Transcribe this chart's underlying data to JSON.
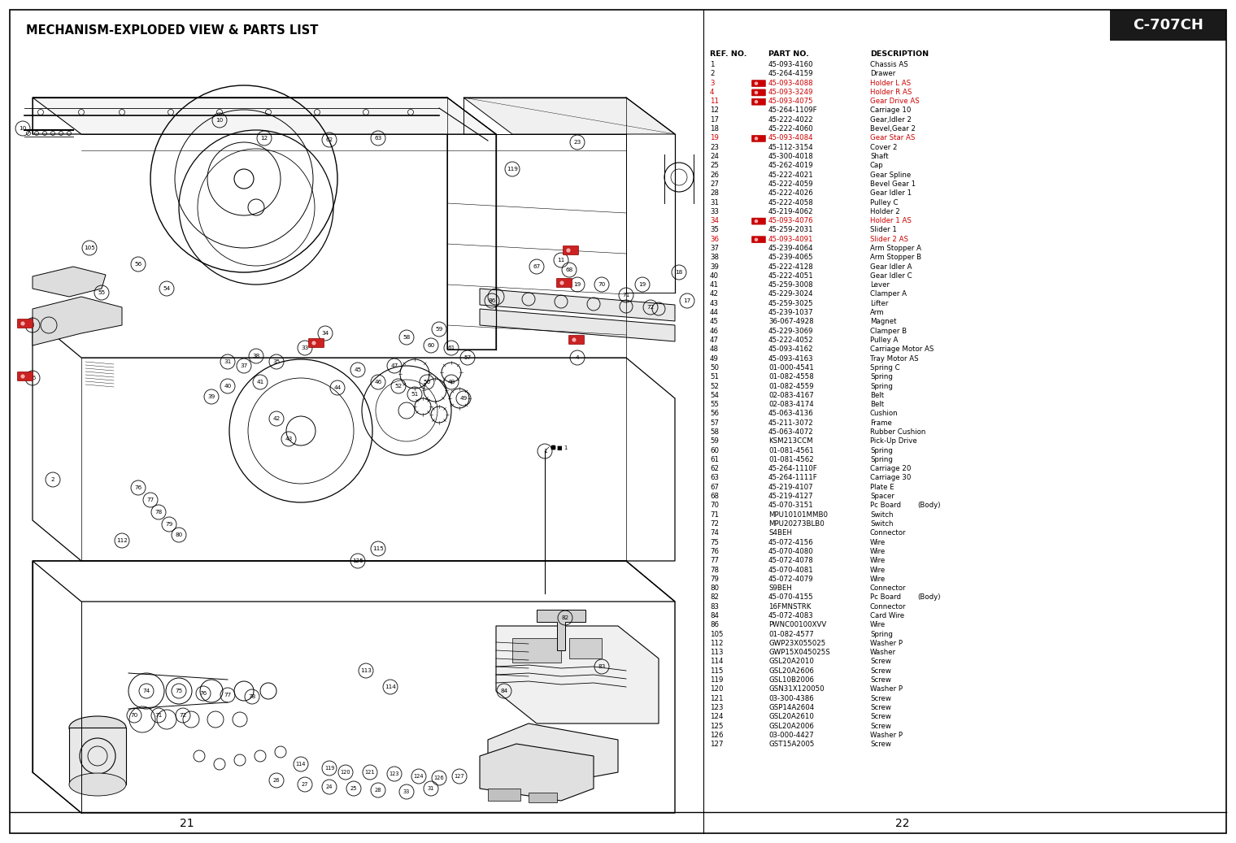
{
  "title": "MECHANISM-EXPLODED VIEW & PARTS LIST",
  "model": "C-707CH",
  "page_left": "21",
  "page_right": "22",
  "background_color": "#ffffff",
  "highlight_color": "#cc0000",
  "normal_color": "#000000",
  "parts_list": [
    {
      "ref": "1",
      "part": "45-093-4160",
      "desc": "Chassis AS",
      "hl": false
    },
    {
      "ref": "2",
      "part": "45-264-4159",
      "desc": "Drawer",
      "hl": false
    },
    {
      "ref": "3",
      "part": "45-093-4088",
      "desc": "Holder L AS",
      "hl": true
    },
    {
      "ref": "4",
      "part": "45-093-3249",
      "desc": "Holder R AS",
      "hl": true
    },
    {
      "ref": "11",
      "part": "45-093-4075",
      "desc": "Gear Drive AS",
      "hl": true
    },
    {
      "ref": "12",
      "part": "45-264-1109F",
      "desc": "Carriage 10",
      "hl": false
    },
    {
      "ref": "17",
      "part": "45-222-4022",
      "desc": "Gear,Idler 2",
      "hl": false
    },
    {
      "ref": "18",
      "part": "45-222-4060",
      "desc": "Bevel,Gear 2",
      "hl": false
    },
    {
      "ref": "19",
      "part": "45-093-4084",
      "desc": "Gear Star AS",
      "hl": true
    },
    {
      "ref": "23",
      "part": "45-112-3154",
      "desc": "Cover 2",
      "hl": false
    },
    {
      "ref": "24",
      "part": "45-300-4018",
      "desc": "Shaft",
      "hl": false
    },
    {
      "ref": "25",
      "part": "45-262-4019",
      "desc": "Cap",
      "hl": false
    },
    {
      "ref": "26",
      "part": "45-222-4021",
      "desc": "Gear Spline",
      "hl": false
    },
    {
      "ref": "27",
      "part": "45-222-4059",
      "desc": "Bevel Gear 1",
      "hl": false
    },
    {
      "ref": "28",
      "part": "45-222-4026",
      "desc": "Gear Idler 1",
      "hl": false
    },
    {
      "ref": "31",
      "part": "45-222-4058",
      "desc": "Pulley C",
      "hl": false
    },
    {
      "ref": "33",
      "part": "45-219-4062",
      "desc": "Holder 2",
      "hl": false
    },
    {
      "ref": "34",
      "part": "45-093-4076",
      "desc": "Holder 1 AS",
      "hl": true
    },
    {
      "ref": "35",
      "part": "45-259-2031",
      "desc": "Slider 1",
      "hl": false
    },
    {
      "ref": "36",
      "part": "45-093-4091",
      "desc": "Slider 2 AS",
      "hl": true
    },
    {
      "ref": "37",
      "part": "45-239-4064",
      "desc": "Arm Stopper A",
      "hl": false
    },
    {
      "ref": "38",
      "part": "45-239-4065",
      "desc": "Arm Stopper B",
      "hl": false
    },
    {
      "ref": "39",
      "part": "45-222-4128",
      "desc": "Gear Idler A",
      "hl": false
    },
    {
      "ref": "40",
      "part": "45-222-4051",
      "desc": "Gear Idler C",
      "hl": false
    },
    {
      "ref": "41",
      "part": "45-259-3008",
      "desc": "Lever",
      "hl": false
    },
    {
      "ref": "42",
      "part": "45-229-3024",
      "desc": "Clamper A",
      "hl": false
    },
    {
      "ref": "43",
      "part": "45-259-3025",
      "desc": "Lifter",
      "hl": false
    },
    {
      "ref": "44",
      "part": "45-239-1037",
      "desc": "Arm",
      "hl": false
    },
    {
      "ref": "45",
      "part": "36-067-4928",
      "desc": "Magnet",
      "hl": false
    },
    {
      "ref": "46",
      "part": "45-229-3069",
      "desc": "Clamper B",
      "hl": false
    },
    {
      "ref": "47",
      "part": "45-222-4052",
      "desc": "Pulley A",
      "hl": false
    },
    {
      "ref": "48",
      "part": "45-093-4162",
      "desc": "Carriage Motor AS",
      "hl": false
    },
    {
      "ref": "49",
      "part": "45-093-4163",
      "desc": "Tray Motor AS",
      "hl": false
    },
    {
      "ref": "50",
      "part": "01-000-4541",
      "desc": "Spring C",
      "hl": false
    },
    {
      "ref": "51",
      "part": "01-082-4558",
      "desc": "Spring",
      "hl": false
    },
    {
      "ref": "52",
      "part": "01-082-4559",
      "desc": "Spring",
      "hl": false
    },
    {
      "ref": "54",
      "part": "02-083-4167",
      "desc": "Belt",
      "hl": false
    },
    {
      "ref": "55",
      "part": "02-083-4174",
      "desc": "Belt",
      "hl": false
    },
    {
      "ref": "56",
      "part": "45-063-4136",
      "desc": "Cushion",
      "hl": false
    },
    {
      "ref": "57",
      "part": "45-211-3072",
      "desc": "Frame",
      "hl": false
    },
    {
      "ref": "58",
      "part": "45-063-4072",
      "desc": "Rubber Cushion",
      "hl": false
    },
    {
      "ref": "59",
      "part": "KSM213CCM",
      "desc": "Pick-Up Drive",
      "hl": false
    },
    {
      "ref": "60",
      "part": "01-081-4561",
      "desc": "Spring",
      "hl": false
    },
    {
      "ref": "61",
      "part": "01-081-4562",
      "desc": "Spring",
      "hl": false
    },
    {
      "ref": "62",
      "part": "45-264-1110F",
      "desc": "Carriage 20",
      "hl": false
    },
    {
      "ref": "63",
      "part": "45-264-1111F",
      "desc": "Carriage 30",
      "hl": false
    },
    {
      "ref": "67",
      "part": "45-219-4107",
      "desc": "Plate E",
      "hl": false
    },
    {
      "ref": "68",
      "part": "45-219-4127",
      "desc": "Spacer",
      "hl": false
    },
    {
      "ref": "70",
      "part": "45-070-3151",
      "desc": "Pc Board",
      "hl": false,
      "note": "(Body)"
    },
    {
      "ref": "71",
      "part": "MPU10101MMB0",
      "desc": "Switch",
      "hl": false
    },
    {
      "ref": "72",
      "part": "MPU20273BLB0",
      "desc": "Switch",
      "hl": false
    },
    {
      "ref": "74",
      "part": "S4BEH",
      "desc": "Connector",
      "hl": false
    },
    {
      "ref": "75",
      "part": "45-072-4156",
      "desc": "Wire",
      "hl": false
    },
    {
      "ref": "76",
      "part": "45-070-4080",
      "desc": "Wire",
      "hl": false
    },
    {
      "ref": "77",
      "part": "45-072-4078",
      "desc": "Wire",
      "hl": false
    },
    {
      "ref": "78",
      "part": "45-070-4081",
      "desc": "Wire",
      "hl": false
    },
    {
      "ref": "79",
      "part": "45-072-4079",
      "desc": "Wire",
      "hl": false
    },
    {
      "ref": "80",
      "part": "S9BEH",
      "desc": "Connector",
      "hl": false
    },
    {
      "ref": "82",
      "part": "45-070-4155",
      "desc": "Pc Board",
      "hl": false,
      "note": "(Body)"
    },
    {
      "ref": "83",
      "part": "16FMNSTRK",
      "desc": "Connector",
      "hl": false
    },
    {
      "ref": "84",
      "part": "45-072-4083",
      "desc": "Card Wire",
      "hl": false
    },
    {
      "ref": "86",
      "part": "PWNC00100XVV",
      "desc": "Wire",
      "hl": false
    },
    {
      "ref": "105",
      "part": "01-082-4577",
      "desc": "Spring",
      "hl": false
    },
    {
      "ref": "112",
      "part": "GWP23X055025",
      "desc": "Washer P",
      "hl": false
    },
    {
      "ref": "113",
      "part": "GWP15X045025S",
      "desc": "Washer",
      "hl": false
    },
    {
      "ref": "114",
      "part": "GSL20A2010",
      "desc": "Screw",
      "hl": false
    },
    {
      "ref": "115",
      "part": "GSL20A2606",
      "desc": "Screw",
      "hl": false
    },
    {
      "ref": "119",
      "part": "GSL10B2006",
      "desc": "Screw",
      "hl": false
    },
    {
      "ref": "120",
      "part": "GSN31X120050",
      "desc": "Washer P",
      "hl": false
    },
    {
      "ref": "121",
      "part": "03-300-4386",
      "desc": "Screw",
      "hl": false
    },
    {
      "ref": "123",
      "part": "GSP14A2604",
      "desc": "Screw",
      "hl": false
    },
    {
      "ref": "124",
      "part": "GSL20A2610",
      "desc": "Screw",
      "hl": false
    },
    {
      "ref": "125",
      "part": "GSL20A2006",
      "desc": "Screw",
      "hl": false
    },
    {
      "ref": "126",
      "part": "03-000-4427",
      "desc": "Washer P",
      "hl": false
    },
    {
      "ref": "127",
      "part": "GST15A2005",
      "desc": "Screw",
      "hl": false
    }
  ]
}
